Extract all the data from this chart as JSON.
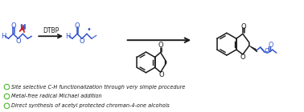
{
  "background_color": "#ffffff",
  "bullet_color": "#55bb33",
  "bullet_points": [
    "Site selective C-H functionalization through very simple procedure",
    "Metal-free radical Michael addition",
    "Direct synthesis of acetyl protected chroman-4-one alcohols"
  ],
  "dtbp_label": "DTBP",
  "blue": "#3355cc",
  "red": "#cc2222",
  "black": "#1a1a1a"
}
